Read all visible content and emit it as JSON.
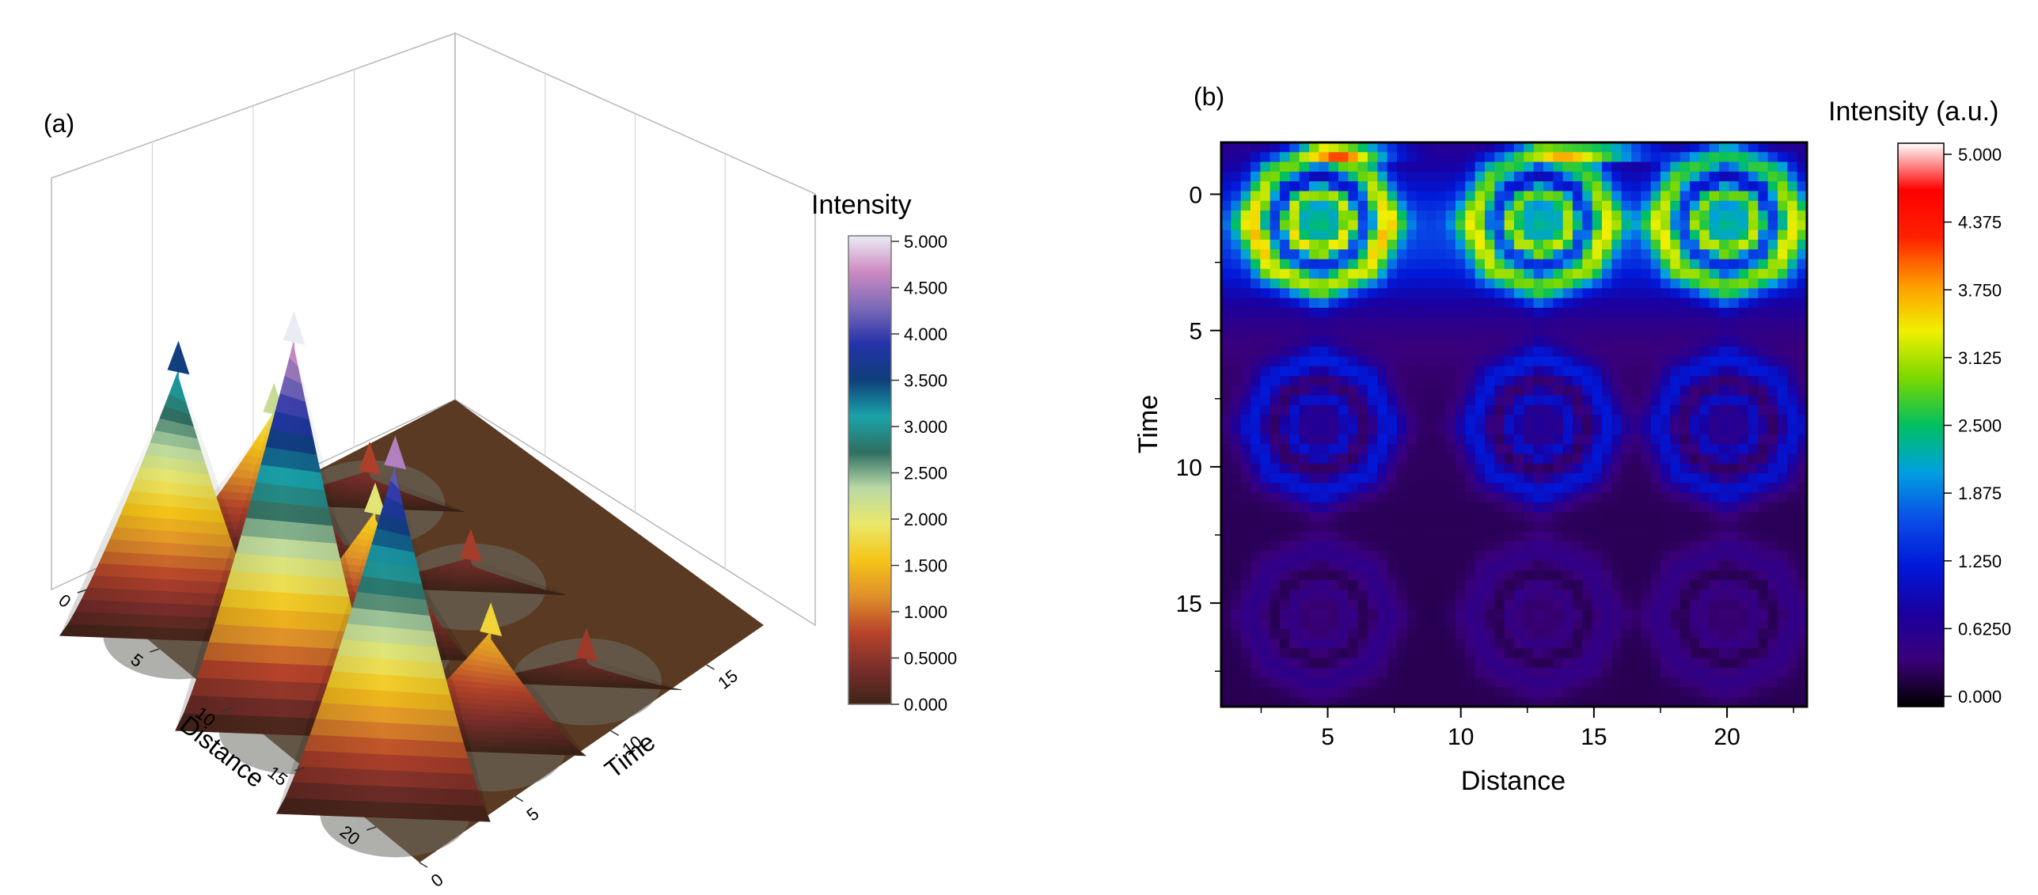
{
  "chart_data": [
    {
      "panel_label": "(a)",
      "type": "surface3d",
      "xlabel": "Distance",
      "ylabel": "Time",
      "zlabel": "Intensity",
      "x_ticks": [
        "0",
        "5",
        "10",
        "15",
        "20"
      ],
      "y_ticks": [
        "0",
        "5",
        "10",
        "15"
      ],
      "xlim": [
        0,
        23
      ],
      "ylim": [
        0,
        18
      ],
      "zlim": [
        0,
        5
      ],
      "colorbar": {
        "title": "Intensity",
        "ticks": [
          "5.000",
          "4.500",
          "4.000",
          "3.500",
          "3.000",
          "2.500",
          "2.000",
          "1.500",
          "1.000",
          "0.5000",
          "0.000"
        ],
        "colors": [
          "#3d2417",
          "#7a2e2a",
          "#b8442a",
          "#e0902a",
          "#f5c518",
          "#eae86a",
          "#b9d9a6",
          "#2f6f62",
          "#1aa3a8",
          "#0e3f7a",
          "#2432a8",
          "#7a6ab8",
          "#cc8ac2",
          "#e9ecf3"
        ]
      },
      "peaks": [
        {
          "distance": 5,
          "time": 1,
          "intensity": 3.2
        },
        {
          "distance": 13,
          "time": 1,
          "intensity": 4.7
        },
        {
          "distance": 20,
          "time": 1,
          "intensity": 4.2
        },
        {
          "distance": 5,
          "time": 6,
          "intensity": 1.9
        },
        {
          "distance": 12,
          "time": 6,
          "intensity": 1.7
        },
        {
          "distance": 20,
          "time": 6,
          "intensity": 1.4
        },
        {
          "distance": 5,
          "time": 11,
          "intensity": 0.4
        },
        {
          "distance": 12,
          "time": 11,
          "intensity": 0.35
        },
        {
          "distance": 20,
          "time": 11,
          "intensity": 0.3
        }
      ]
    },
    {
      "panel_label": "(b)",
      "type": "heatmap",
      "xlabel": "Distance",
      "ylabel": "Time",
      "x_ticks": [
        5,
        10,
        15,
        20
      ],
      "y_ticks": [
        0,
        5,
        10,
        15
      ],
      "xlim": [
        1,
        23
      ],
      "ylim": [
        18.8,
        -1.9
      ],
      "centers": [
        {
          "distance": 4.7,
          "time": 1,
          "peak": 3.8
        },
        {
          "distance": 13,
          "time": 1,
          "peak": 3.4
        },
        {
          "distance": 20,
          "time": 1,
          "peak": 3.4
        },
        {
          "distance": 4.7,
          "time": 8.5,
          "peak": 1.7
        },
        {
          "distance": 13,
          "time": 8.5,
          "peak": 1.7
        },
        {
          "distance": 20,
          "time": 8.5,
          "peak": 1.6
        },
        {
          "distance": 4.7,
          "time": 15.5,
          "peak": 0.55
        },
        {
          "distance": 13,
          "time": 15.5,
          "peak": 0.5
        },
        {
          "distance": 20,
          "time": 15.5,
          "peak": 0.5
        }
      ],
      "colorbar": {
        "title": "Intensity (a.u.)",
        "ticks": [
          "5.000",
          "4.375",
          "3.750",
          "3.125",
          "2.500",
          "1.875",
          "1.250",
          "0.6250",
          "0.000"
        ],
        "range": [
          0,
          5
        ],
        "colors": [
          "#000000",
          "#3a007a",
          "#1a00a0",
          "#0018d8",
          "#0a4ee8",
          "#00a0e0",
          "#00c060",
          "#7ad800",
          "#f0f000",
          "#ff9a00",
          "#ff2000",
          "#ff0000",
          "#ffffff"
        ]
      }
    }
  ]
}
